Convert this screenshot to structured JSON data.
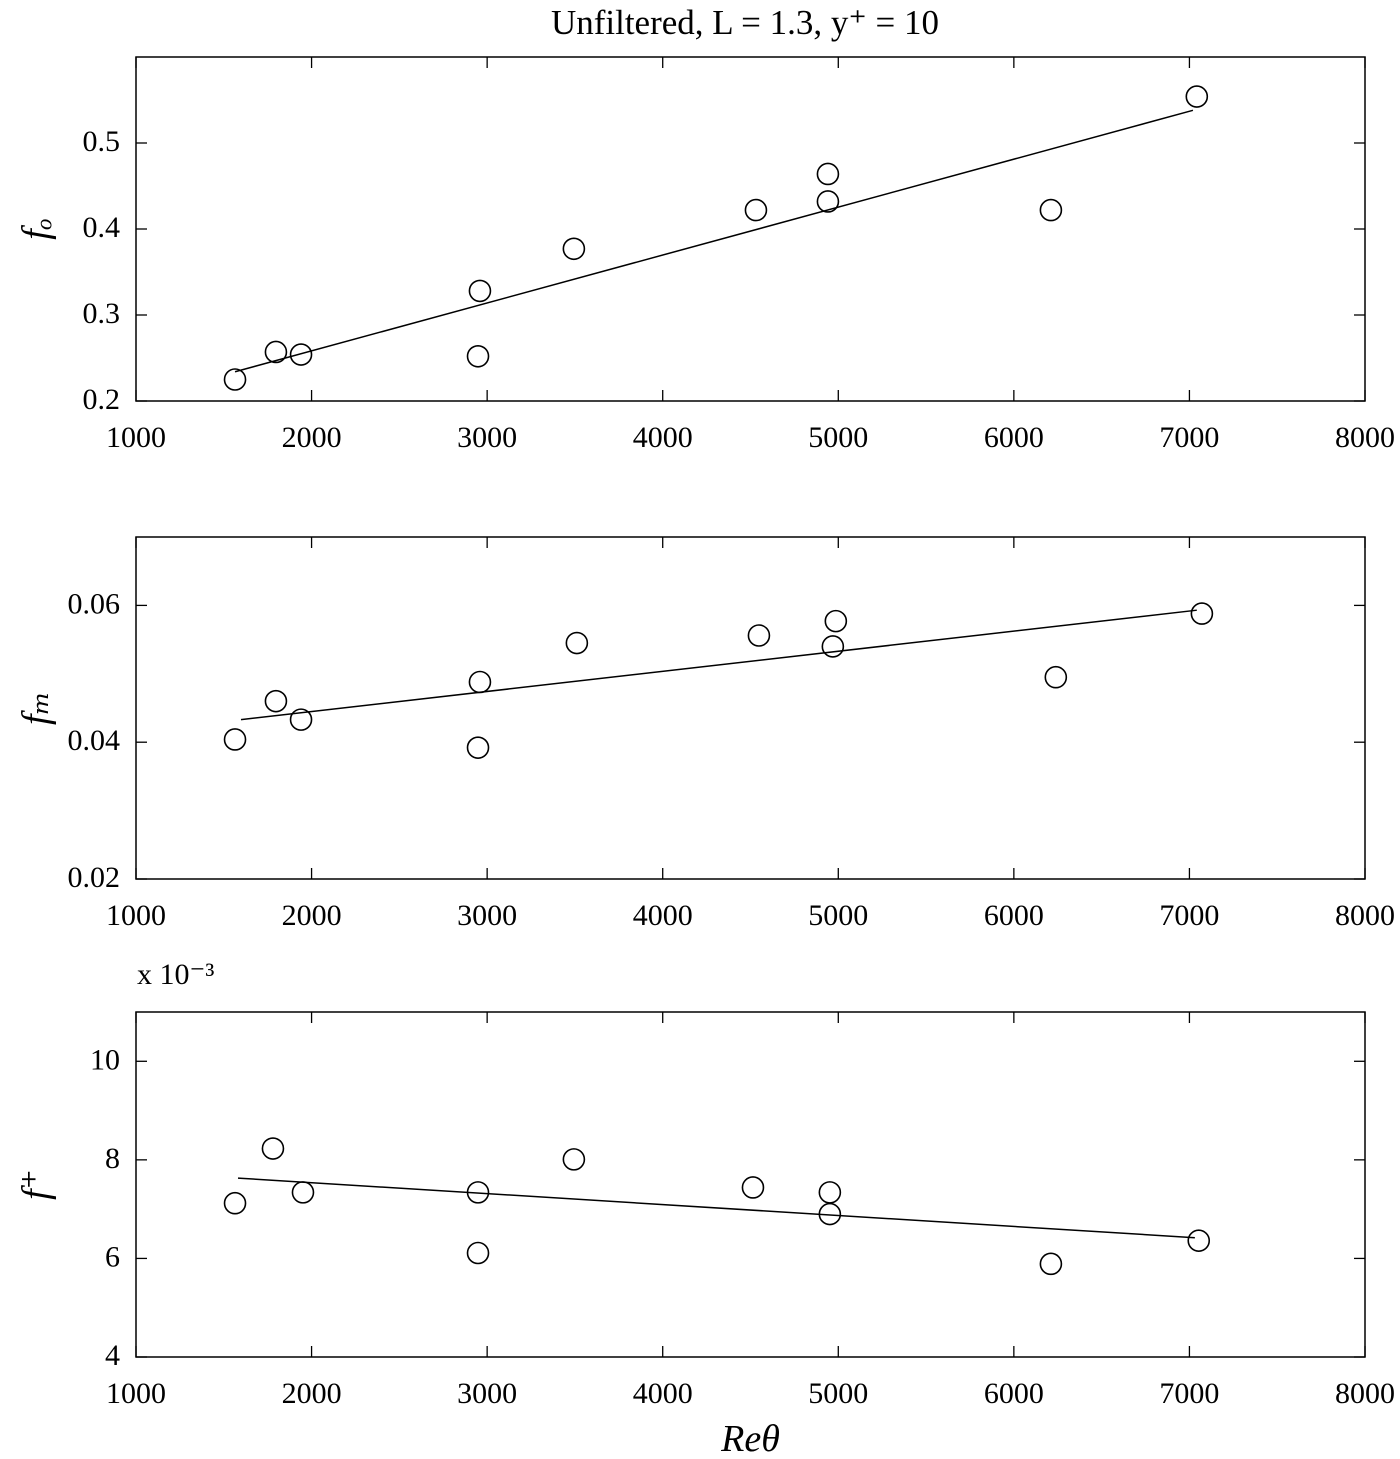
{
  "title": "Unfiltered, L = 1.3, y⁺ = 10",
  "chart_data": [
    {
      "type": "scatter",
      "ylabel": "fₒ",
      "xlabel": "",
      "xlim": [
        1000,
        8000
      ],
      "ylim": [
        0.2,
        0.6
      ],
      "xticks": [
        1000,
        2000,
        3000,
        4000,
        5000,
        6000,
        7000,
        8000
      ],
      "yticks": [
        0.2,
        0.3,
        0.4,
        0.5
      ],
      "ytick_labels": [
        "0.2",
        "0.3",
        "0.4",
        "0.5"
      ],
      "exponent_label": "",
      "points": [
        [
          1564,
          0.225
        ],
        [
          1797,
          0.257
        ],
        [
          1940,
          0.254
        ],
        [
          2948,
          0.252
        ],
        [
          2959,
          0.328
        ],
        [
          3494,
          0.377
        ],
        [
          4531,
          0.422
        ],
        [
          4941,
          0.464
        ],
        [
          4941,
          0.432
        ],
        [
          6211,
          0.422
        ],
        [
          7042,
          0.554
        ]
      ],
      "fit_line": [
        [
          1564,
          0.234
        ],
        [
          7020,
          0.538
        ]
      ]
    },
    {
      "type": "scatter",
      "ylabel": "fₘ",
      "xlabel": "",
      "xlim": [
        1000,
        8000
      ],
      "ylim": [
        0.02,
        0.07
      ],
      "xticks": [
        1000,
        2000,
        3000,
        4000,
        5000,
        6000,
        7000,
        8000
      ],
      "yticks": [
        0.02,
        0.04,
        0.06
      ],
      "ytick_labels": [
        "0.02",
        "0.04",
        "0.06"
      ],
      "exponent_label": "",
      "points": [
        [
          1564,
          0.0404
        ],
        [
          1797,
          0.046
        ],
        [
          1940,
          0.0433
        ],
        [
          2948,
          0.0392
        ],
        [
          2959,
          0.0488
        ],
        [
          3511,
          0.0545
        ],
        [
          4548,
          0.0556
        ],
        [
          4986,
          0.0577
        ],
        [
          4969,
          0.054
        ],
        [
          6239,
          0.0495
        ],
        [
          7071,
          0.0588
        ]
      ],
      "fit_line": [
        [
          1598,
          0.0433
        ],
        [
          7042,
          0.0593
        ]
      ]
    },
    {
      "type": "scatter",
      "ylabel": "f⁺",
      "xlabel": "Reθ",
      "xlim": [
        1000,
        8000
      ],
      "ylim": [
        4,
        11
      ],
      "y_scale_factor": 0.001,
      "xticks": [
        1000,
        2000,
        3000,
        4000,
        5000,
        6000,
        7000,
        8000
      ],
      "yticks": [
        4,
        6,
        8,
        10
      ],
      "ytick_labels": [
        "4",
        "6",
        "8",
        "10"
      ],
      "exponent_label": "x 10⁻³",
      "points": [
        [
          1564,
          7.12
        ],
        [
          1780,
          8.23
        ],
        [
          1951,
          7.34
        ],
        [
          2948,
          7.34
        ],
        [
          2948,
          6.11
        ],
        [
          3494,
          8.01
        ],
        [
          4514,
          7.44
        ],
        [
          4952,
          7.34
        ],
        [
          4952,
          6.9
        ],
        [
          6211,
          5.89
        ],
        [
          7053,
          6.36
        ]
      ],
      "fit_line": [
        [
          1581,
          7.63
        ],
        [
          7031,
          6.42
        ]
      ]
    }
  ]
}
